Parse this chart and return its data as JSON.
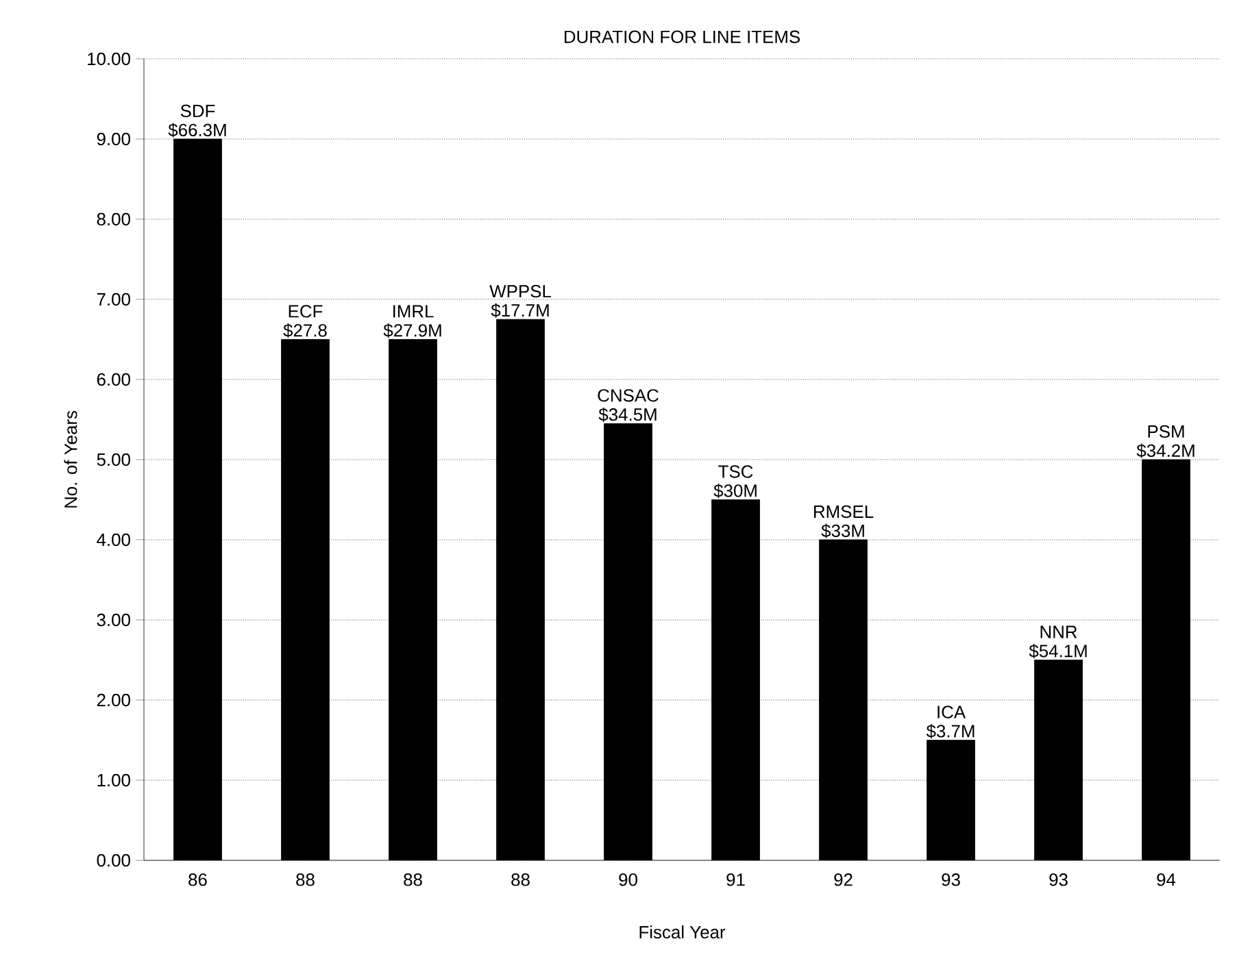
{
  "chart_data": {
    "type": "bar",
    "title": "DURATION FOR LINE ITEMS",
    "xlabel": "Fiscal Year",
    "ylabel": "No. of Years",
    "categories": [
      "86",
      "88",
      "88",
      "88",
      "90",
      "91",
      "92",
      "93",
      "93",
      "94"
    ],
    "values": [
      9.0,
      6.5,
      6.5,
      6.75,
      5.45,
      4.5,
      4.0,
      1.5,
      2.5,
      5.0
    ],
    "value_labels": [
      "SDF $66.3M",
      "ECF $27.8",
      "IMRL $27.9M",
      "WPPSL $17.7M",
      "CNSAC $34.5M",
      "TSC $30M",
      "RMSEL $33M",
      "ICA $3.7M",
      "NNR $54.1M",
      "PSM $34.2M"
    ],
    "color": "#000000",
    "ylim": [
      0,
      10
    ],
    "yticks": [
      {
        "value": 0,
        "label": "0.00"
      },
      {
        "value": 1,
        "label": "1.00"
      },
      {
        "value": 2,
        "label": "2.00"
      },
      {
        "value": 3,
        "label": "3.00"
      },
      {
        "value": 4,
        "label": "4.00"
      },
      {
        "value": 5,
        "label": "5.00"
      },
      {
        "value": 6,
        "label": "6.00"
      },
      {
        "value": 7,
        "label": "7.00"
      },
      {
        "value": 8,
        "label": "8.00"
      },
      {
        "value": 9,
        "label": "9.00"
      },
      {
        "value": 10,
        "label": "10.00"
      }
    ],
    "grid": "y"
  }
}
